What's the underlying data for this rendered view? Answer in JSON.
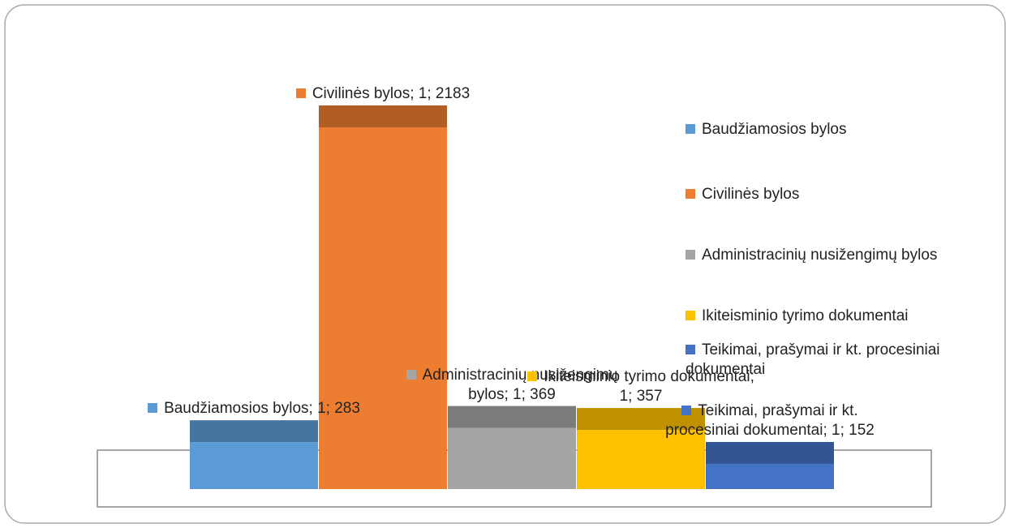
{
  "chart_data": {
    "type": "bar3d",
    "categories": [
      "1"
    ],
    "series": [
      {
        "name": "Baudžiamosios bylos",
        "color": "#5b9bd5",
        "values": [
          283
        ],
        "value_labels": [
          "Baudžiamosios bylos; 1; 283"
        ]
      },
      {
        "name": "Civilinės bylos",
        "color": "#ed7d31",
        "values": [
          2183
        ],
        "value_labels": [
          "Civilinės bylos; 1; 2183"
        ]
      },
      {
        "name": "Administracinių nusižengimų bylos",
        "color": "#a5a5a5",
        "values": [
          369
        ],
        "value_labels": [
          "Administracinių nusižengimų bylos; 1; 369"
        ]
      },
      {
        "name": "Ikiteisminio tyrimo dokumentai",
        "color": "#ffc000",
        "values": [
          357
        ],
        "value_labels": [
          "Ikiteisminio tyrimo dokumentai; 1; 357"
        ]
      },
      {
        "name": "Teikimai, prašymai ir kt. procesiniai dokumentai",
        "color": "#4472c4",
        "values": [
          152
        ],
        "value_labels": [
          "Teikimai, prašymai ir kt. procesiniai dokumentai; 1; 152"
        ]
      }
    ],
    "legend": "right"
  }
}
